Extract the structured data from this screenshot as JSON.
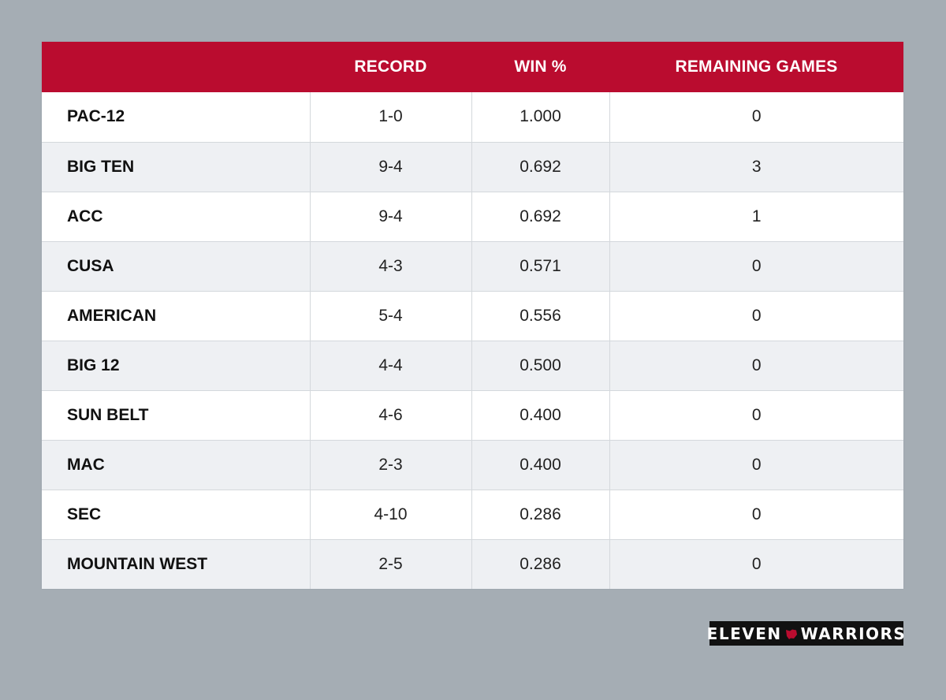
{
  "table": {
    "headers": [
      "",
      "RECORD",
      "WIN %",
      "REMAINING GAMES"
    ],
    "rows": [
      [
        "PAC-12",
        "1-0",
        "1.000",
        "0"
      ],
      [
        "BIG TEN",
        "9-4",
        "0.692",
        "3"
      ],
      [
        "ACC",
        "9-4",
        "0.692",
        "1"
      ],
      [
        "CUSA",
        "4-3",
        "0.571",
        "0"
      ],
      [
        "AMERICAN",
        "5-4",
        "0.556",
        "0"
      ],
      [
        "BIG 12",
        "4-4",
        "0.500",
        "0"
      ],
      [
        "SUN BELT",
        "4-6",
        "0.400",
        "0"
      ],
      [
        "MAC",
        "2-3",
        "0.400",
        "0"
      ],
      [
        "SEC",
        "4-10",
        "0.286",
        "0"
      ],
      [
        "MOUNTAIN WEST",
        "2-5",
        "0.286",
        "0"
      ]
    ]
  },
  "chart_data": {
    "type": "table",
    "columns": [
      "",
      "RECORD",
      "WIN %",
      "REMAINING GAMES"
    ],
    "rows": [
      {
        "conference": "PAC-12",
        "record": "1-0",
        "win_pct": 1.0,
        "remaining_games": 0
      },
      {
        "conference": "BIG TEN",
        "record": "9-4",
        "win_pct": 0.692,
        "remaining_games": 3
      },
      {
        "conference": "ACC",
        "record": "9-4",
        "win_pct": 0.692,
        "remaining_games": 1
      },
      {
        "conference": "CUSA",
        "record": "4-3",
        "win_pct": 0.571,
        "remaining_games": 0
      },
      {
        "conference": "AMERICAN",
        "record": "5-4",
        "win_pct": 0.556,
        "remaining_games": 0
      },
      {
        "conference": "BIG 12",
        "record": "4-4",
        "win_pct": 0.5,
        "remaining_games": 0
      },
      {
        "conference": "SUN BELT",
        "record": "4-6",
        "win_pct": 0.4,
        "remaining_games": 0
      },
      {
        "conference": "MAC",
        "record": "2-3",
        "win_pct": 0.4,
        "remaining_games": 0
      },
      {
        "conference": "SEC",
        "record": "4-10",
        "win_pct": 0.286,
        "remaining_games": 0
      },
      {
        "conference": "MOUNTAIN WEST",
        "record": "2-5",
        "win_pct": 0.286,
        "remaining_games": 0
      }
    ]
  },
  "logo": {
    "left_text": "ELEVEN",
    "right_text": "WARRIORS",
    "icon": "ohio-state-outline-icon"
  },
  "colors": {
    "header_bg": "#ba0c2f",
    "page_bg": "#a5adb4",
    "row_alt": "#eef0f3"
  }
}
